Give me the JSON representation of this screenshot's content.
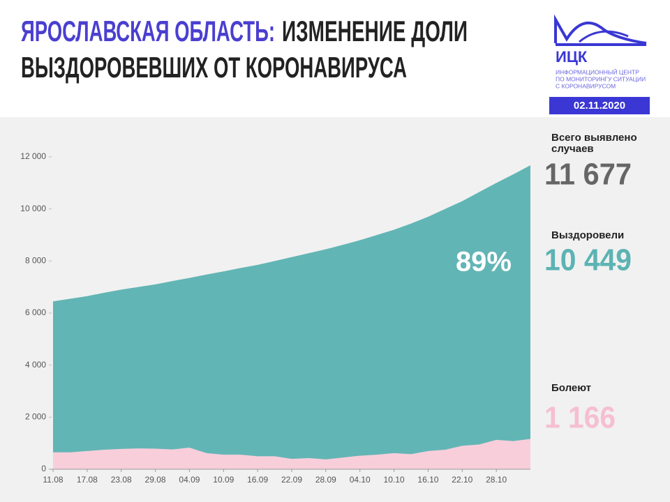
{
  "header": {
    "region": "ЯРОСЛАВСКАЯ ОБЛАСТЬ:",
    "title_line1": "ИЗМЕНЕНИЕ ДОЛИ",
    "title_line2": "ВЫЗДОРОВЕВШИХ ОТ КОРОНАВИРУСА"
  },
  "logo": {
    "name": "ИЦК",
    "lines": [
      "ИНФОРМАЦИОННЫЙ ЦЕНТР",
      "ПО МОНИТОРИНГУ СИТУАЦИИ",
      "С КОРОНАВИРУСОМ"
    ],
    "date": "02.11.2020"
  },
  "chart_data": {
    "type": "area",
    "categories": [
      "11.08",
      null,
      "17.08",
      null,
      "23.08",
      null,
      "29.08",
      null,
      "04.09",
      null,
      "10.09",
      null,
      "16.09",
      null,
      "22.09",
      null,
      "28.09",
      null,
      "04.10",
      null,
      "10.10",
      null,
      "16.10",
      null,
      "22.10",
      null,
      "28.10",
      null,
      null
    ],
    "series": [
      {
        "color": "#62b5b5",
        "values": [
          6450,
          6550,
          6650,
          6780,
          6900,
          7000,
          7100,
          7230,
          7350,
          7480,
          7600,
          7730,
          7850,
          8000,
          8150,
          8300,
          8450,
          8620,
          8800,
          9000,
          9200,
          9440,
          9700,
          10000,
          10300,
          10650,
          11000,
          11330,
          11677
        ]
      },
      {
        "color": "#f8cedb",
        "values": [
          650,
          650,
          700,
          750,
          780,
          800,
          790,
          760,
          830,
          620,
          560,
          560,
          500,
          500,
          400,
          430,
          380,
          450,
          520,
          560,
          620,
          580,
          700,
          750,
          900,
          950,
          1130,
          1080,
          1166
        ]
      }
    ],
    "ylim": [
      0,
      12000
    ],
    "yticks": [
      0,
      {
        "value": 2000,
        "label": "2 000"
      },
      {
        "value": 4000,
        "label": "4 000"
      },
      {
        "value": 6000,
        "label": "6 000"
      },
      {
        "value": 8000,
        "label": "8 000"
      },
      {
        "value": 10000,
        "label": "10 000"
      },
      {
        "value": 12000,
        "label": "12 000"
      }
    ],
    "annotation": {
      "value": 89,
      "label": "89%"
    },
    "summary": [
      {
        "name": "Всего выявлено случаев",
        "value": 11677,
        "label": "11 677",
        "color": "#666666"
      },
      {
        "name": "Выздоровели",
        "value": 10449,
        "label": "10 449",
        "color": "#5cb3b3"
      },
      {
        "name": "Болеют",
        "value": 1166,
        "label": "1 166",
        "color": "#f6bfd1"
      }
    ]
  }
}
